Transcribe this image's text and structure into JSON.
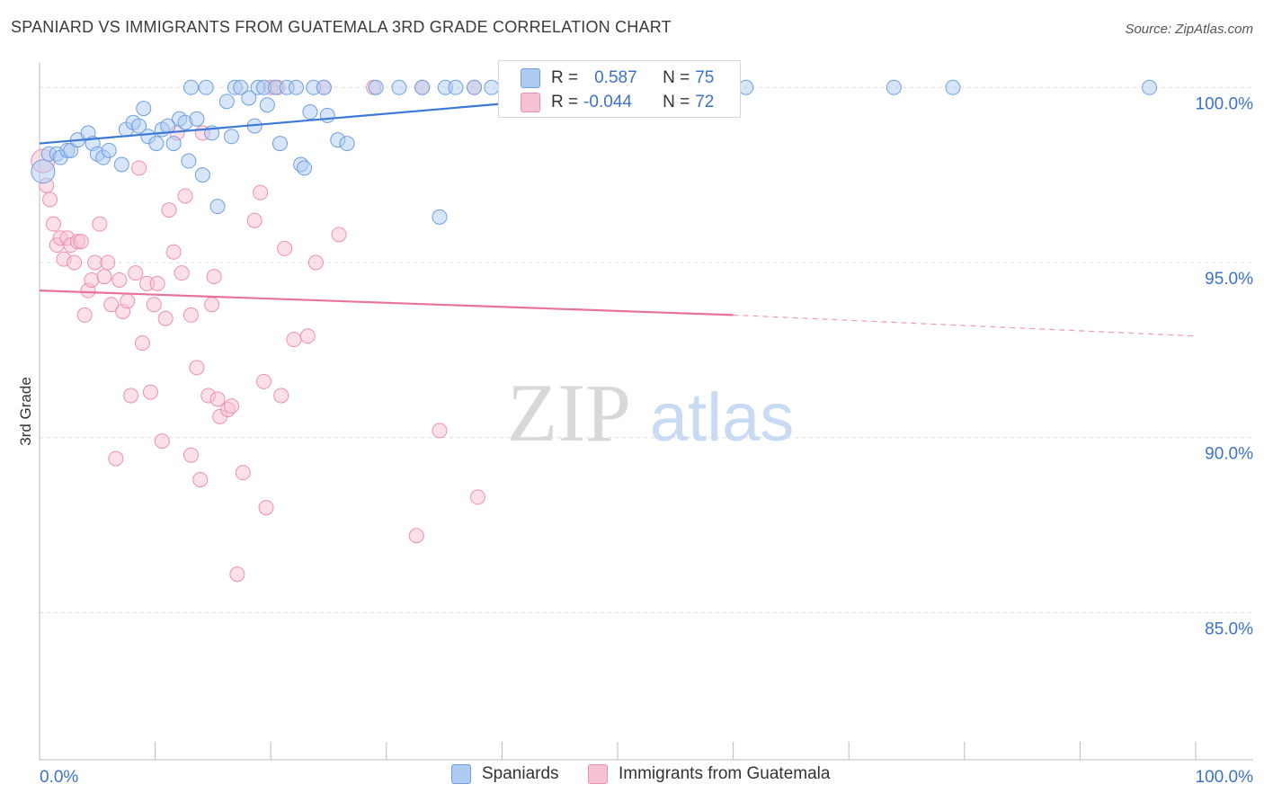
{
  "title": "SPANIARD VS IMMIGRANTS FROM GUATEMALA 3RD GRADE CORRELATION CHART",
  "source": "Source: ZipAtlas.com",
  "watermark": {
    "zip": "ZIP",
    "atlas": "atlas"
  },
  "legend": {
    "r_label": "R =",
    "n_label": "N =",
    "rows": [
      {
        "r": "0.587",
        "n": "75",
        "fill": "#aecbf2",
        "stroke": "#6f9fe0"
      },
      {
        "r": "-0.044",
        "n": "72",
        "fill": "#f7c1d4",
        "stroke": "#ee90b0"
      }
    ]
  },
  "bottom_legend": [
    {
      "label": "Spaniards",
      "fill": "#aecbf2",
      "stroke": "#6f9fe0"
    },
    {
      "label": "Immigrants from Guatemala",
      "fill": "#f7c1d4",
      "stroke": "#ee90b0"
    }
  ],
  "chart_data": {
    "type": "scatter",
    "title": "SPANIARD VS IMMIGRANTS FROM GUATEMALA 3RD GRADE CORRELATION CHART",
    "xlabel": "",
    "ylabel": "3rd Grade",
    "xlim": [
      0,
      100
    ],
    "ylim": [
      80.8,
      100.7
    ],
    "x_tick_labels": [
      "0.0%",
      "100.0%"
    ],
    "y_ticks": [
      100,
      95,
      90,
      85
    ],
    "y_tick_labels": [
      "100.0%",
      "95.0%",
      "90.0%",
      "85.0%"
    ],
    "grid": true,
    "colors": {
      "blue": "#3b78d8",
      "pink": "#e8729a",
      "axis_label": "#3d72c9"
    },
    "series": [
      {
        "name": "Spaniards",
        "color": "#6f9fe0",
        "fill": "#aecbf2",
        "trend": {
          "x": [
            0,
            60
          ],
          "y": [
            98.4,
            100.1
          ],
          "dashed_to": null
        },
        "points": [
          [
            0.3,
            97.6
          ],
          [
            0.8,
            98.1
          ],
          [
            1.5,
            98.1
          ],
          [
            1.8,
            98.0
          ],
          [
            2.4,
            98.2
          ],
          [
            2.7,
            98.2
          ],
          [
            3.3,
            98.5
          ],
          [
            4.2,
            98.7
          ],
          [
            4.6,
            98.4
          ],
          [
            5.0,
            98.1
          ],
          [
            5.5,
            98.0
          ],
          [
            6.0,
            98.2
          ],
          [
            7.1,
            97.8
          ],
          [
            7.5,
            98.8
          ],
          [
            8.1,
            99.0
          ],
          [
            8.6,
            98.9
          ],
          [
            9.0,
            99.4
          ],
          [
            9.4,
            98.6
          ],
          [
            10.1,
            98.4
          ],
          [
            10.6,
            98.8
          ],
          [
            11.1,
            98.9
          ],
          [
            11.6,
            98.4
          ],
          [
            12.1,
            99.1
          ],
          [
            12.6,
            99.0
          ],
          [
            12.9,
            97.9
          ],
          [
            13.1,
            100.0
          ],
          [
            13.6,
            99.1
          ],
          [
            14.1,
            97.5
          ],
          [
            14.4,
            100.0
          ],
          [
            14.9,
            98.7
          ],
          [
            15.4,
            96.6
          ],
          [
            16.2,
            99.6
          ],
          [
            16.6,
            98.6
          ],
          [
            16.9,
            100.0
          ],
          [
            17.4,
            100.0
          ],
          [
            18.1,
            99.7
          ],
          [
            18.6,
            98.9
          ],
          [
            18.9,
            100.0
          ],
          [
            19.4,
            100.0
          ],
          [
            19.7,
            99.5
          ],
          [
            20.4,
            100.0
          ],
          [
            20.8,
            98.4
          ],
          [
            21.4,
            100.0
          ],
          [
            22.2,
            100.0
          ],
          [
            22.6,
            97.8
          ],
          [
            22.9,
            97.7
          ],
          [
            23.4,
            99.3
          ],
          [
            23.7,
            100.0
          ],
          [
            24.6,
            100.0
          ],
          [
            24.9,
            99.2
          ],
          [
            25.8,
            98.5
          ],
          [
            26.6,
            98.4
          ],
          [
            29.1,
            100.0
          ],
          [
            31.1,
            100.0
          ],
          [
            33.1,
            100.0
          ],
          [
            34.6,
            96.3
          ],
          [
            35.1,
            100.0
          ],
          [
            36.0,
            100.0
          ],
          [
            37.6,
            100.0
          ],
          [
            39.1,
            100.0
          ],
          [
            41.1,
            100.0
          ],
          [
            42.6,
            100.0
          ],
          [
            44.1,
            100.0
          ],
          [
            45.6,
            100.0
          ],
          [
            47.1,
            100.0
          ],
          [
            49.1,
            100.0
          ],
          [
            51.1,
            100.0
          ],
          [
            53.1,
            100.0
          ],
          [
            56.1,
            100.0
          ],
          [
            57.6,
            100.0
          ],
          [
            59.1,
            100.0
          ],
          [
            61.1,
            100.0
          ],
          [
            73.9,
            100.0
          ],
          [
            79.0,
            100.0
          ],
          [
            96.0,
            100.0
          ]
        ]
      },
      {
        "name": "Immigrants from Guatemala",
        "color": "#ee90b0",
        "fill": "#f7c1d4",
        "trend": {
          "x": [
            0,
            60
          ],
          "y": [
            94.2,
            93.5
          ],
          "dashed_to": [
            100,
            92.9
          ]
        },
        "points": [
          [
            0.3,
            97.9
          ],
          [
            0.6,
            97.2
          ],
          [
            0.9,
            96.8
          ],
          [
            1.2,
            96.1
          ],
          [
            1.5,
            95.5
          ],
          [
            1.8,
            95.7
          ],
          [
            2.1,
            95.1
          ],
          [
            2.4,
            95.7
          ],
          [
            2.7,
            95.5
          ],
          [
            3.0,
            95.0
          ],
          [
            3.3,
            95.6
          ],
          [
            3.6,
            95.6
          ],
          [
            3.9,
            93.5
          ],
          [
            4.2,
            94.2
          ],
          [
            4.5,
            94.5
          ],
          [
            4.8,
            95.0
          ],
          [
            5.2,
            96.1
          ],
          [
            5.6,
            94.6
          ],
          [
            5.9,
            95.0
          ],
          [
            6.2,
            93.8
          ],
          [
            6.6,
            89.4
          ],
          [
            6.9,
            94.5
          ],
          [
            7.2,
            93.6
          ],
          [
            7.6,
            93.9
          ],
          [
            7.9,
            91.2
          ],
          [
            8.3,
            94.7
          ],
          [
            8.6,
            97.7
          ],
          [
            8.9,
            92.7
          ],
          [
            9.3,
            94.4
          ],
          [
            9.6,
            91.3
          ],
          [
            9.9,
            93.8
          ],
          [
            10.2,
            94.4
          ],
          [
            10.6,
            89.9
          ],
          [
            10.9,
            93.4
          ],
          [
            11.2,
            96.5
          ],
          [
            11.6,
            95.3
          ],
          [
            11.9,
            98.7
          ],
          [
            12.3,
            94.7
          ],
          [
            12.6,
            96.9
          ],
          [
            13.1,
            93.5
          ],
          [
            13.1,
            89.5
          ],
          [
            13.6,
            92.0
          ],
          [
            13.9,
            88.8
          ],
          [
            14.1,
            98.7
          ],
          [
            14.6,
            91.2
          ],
          [
            14.9,
            93.8
          ],
          [
            15.1,
            94.6
          ],
          [
            15.4,
            91.1
          ],
          [
            15.6,
            90.6
          ],
          [
            16.3,
            90.8
          ],
          [
            16.6,
            90.9
          ],
          [
            17.1,
            86.1
          ],
          [
            17.6,
            89.0
          ],
          [
            18.6,
            96.2
          ],
          [
            19.1,
            97.0
          ],
          [
            19.4,
            91.6
          ],
          [
            19.6,
            88.0
          ],
          [
            20.0,
            100.0
          ],
          [
            20.6,
            100.0
          ],
          [
            20.9,
            91.2
          ],
          [
            21.2,
            95.4
          ],
          [
            22.0,
            92.8
          ],
          [
            23.2,
            92.9
          ],
          [
            23.9,
            95.0
          ],
          [
            24.6,
            100.0
          ],
          [
            25.9,
            95.8
          ],
          [
            28.9,
            100.0
          ],
          [
            32.6,
            87.2
          ],
          [
            33.1,
            100.0
          ],
          [
            34.6,
            90.2
          ],
          [
            37.6,
            100.0
          ],
          [
            37.9,
            88.3
          ]
        ]
      }
    ]
  }
}
